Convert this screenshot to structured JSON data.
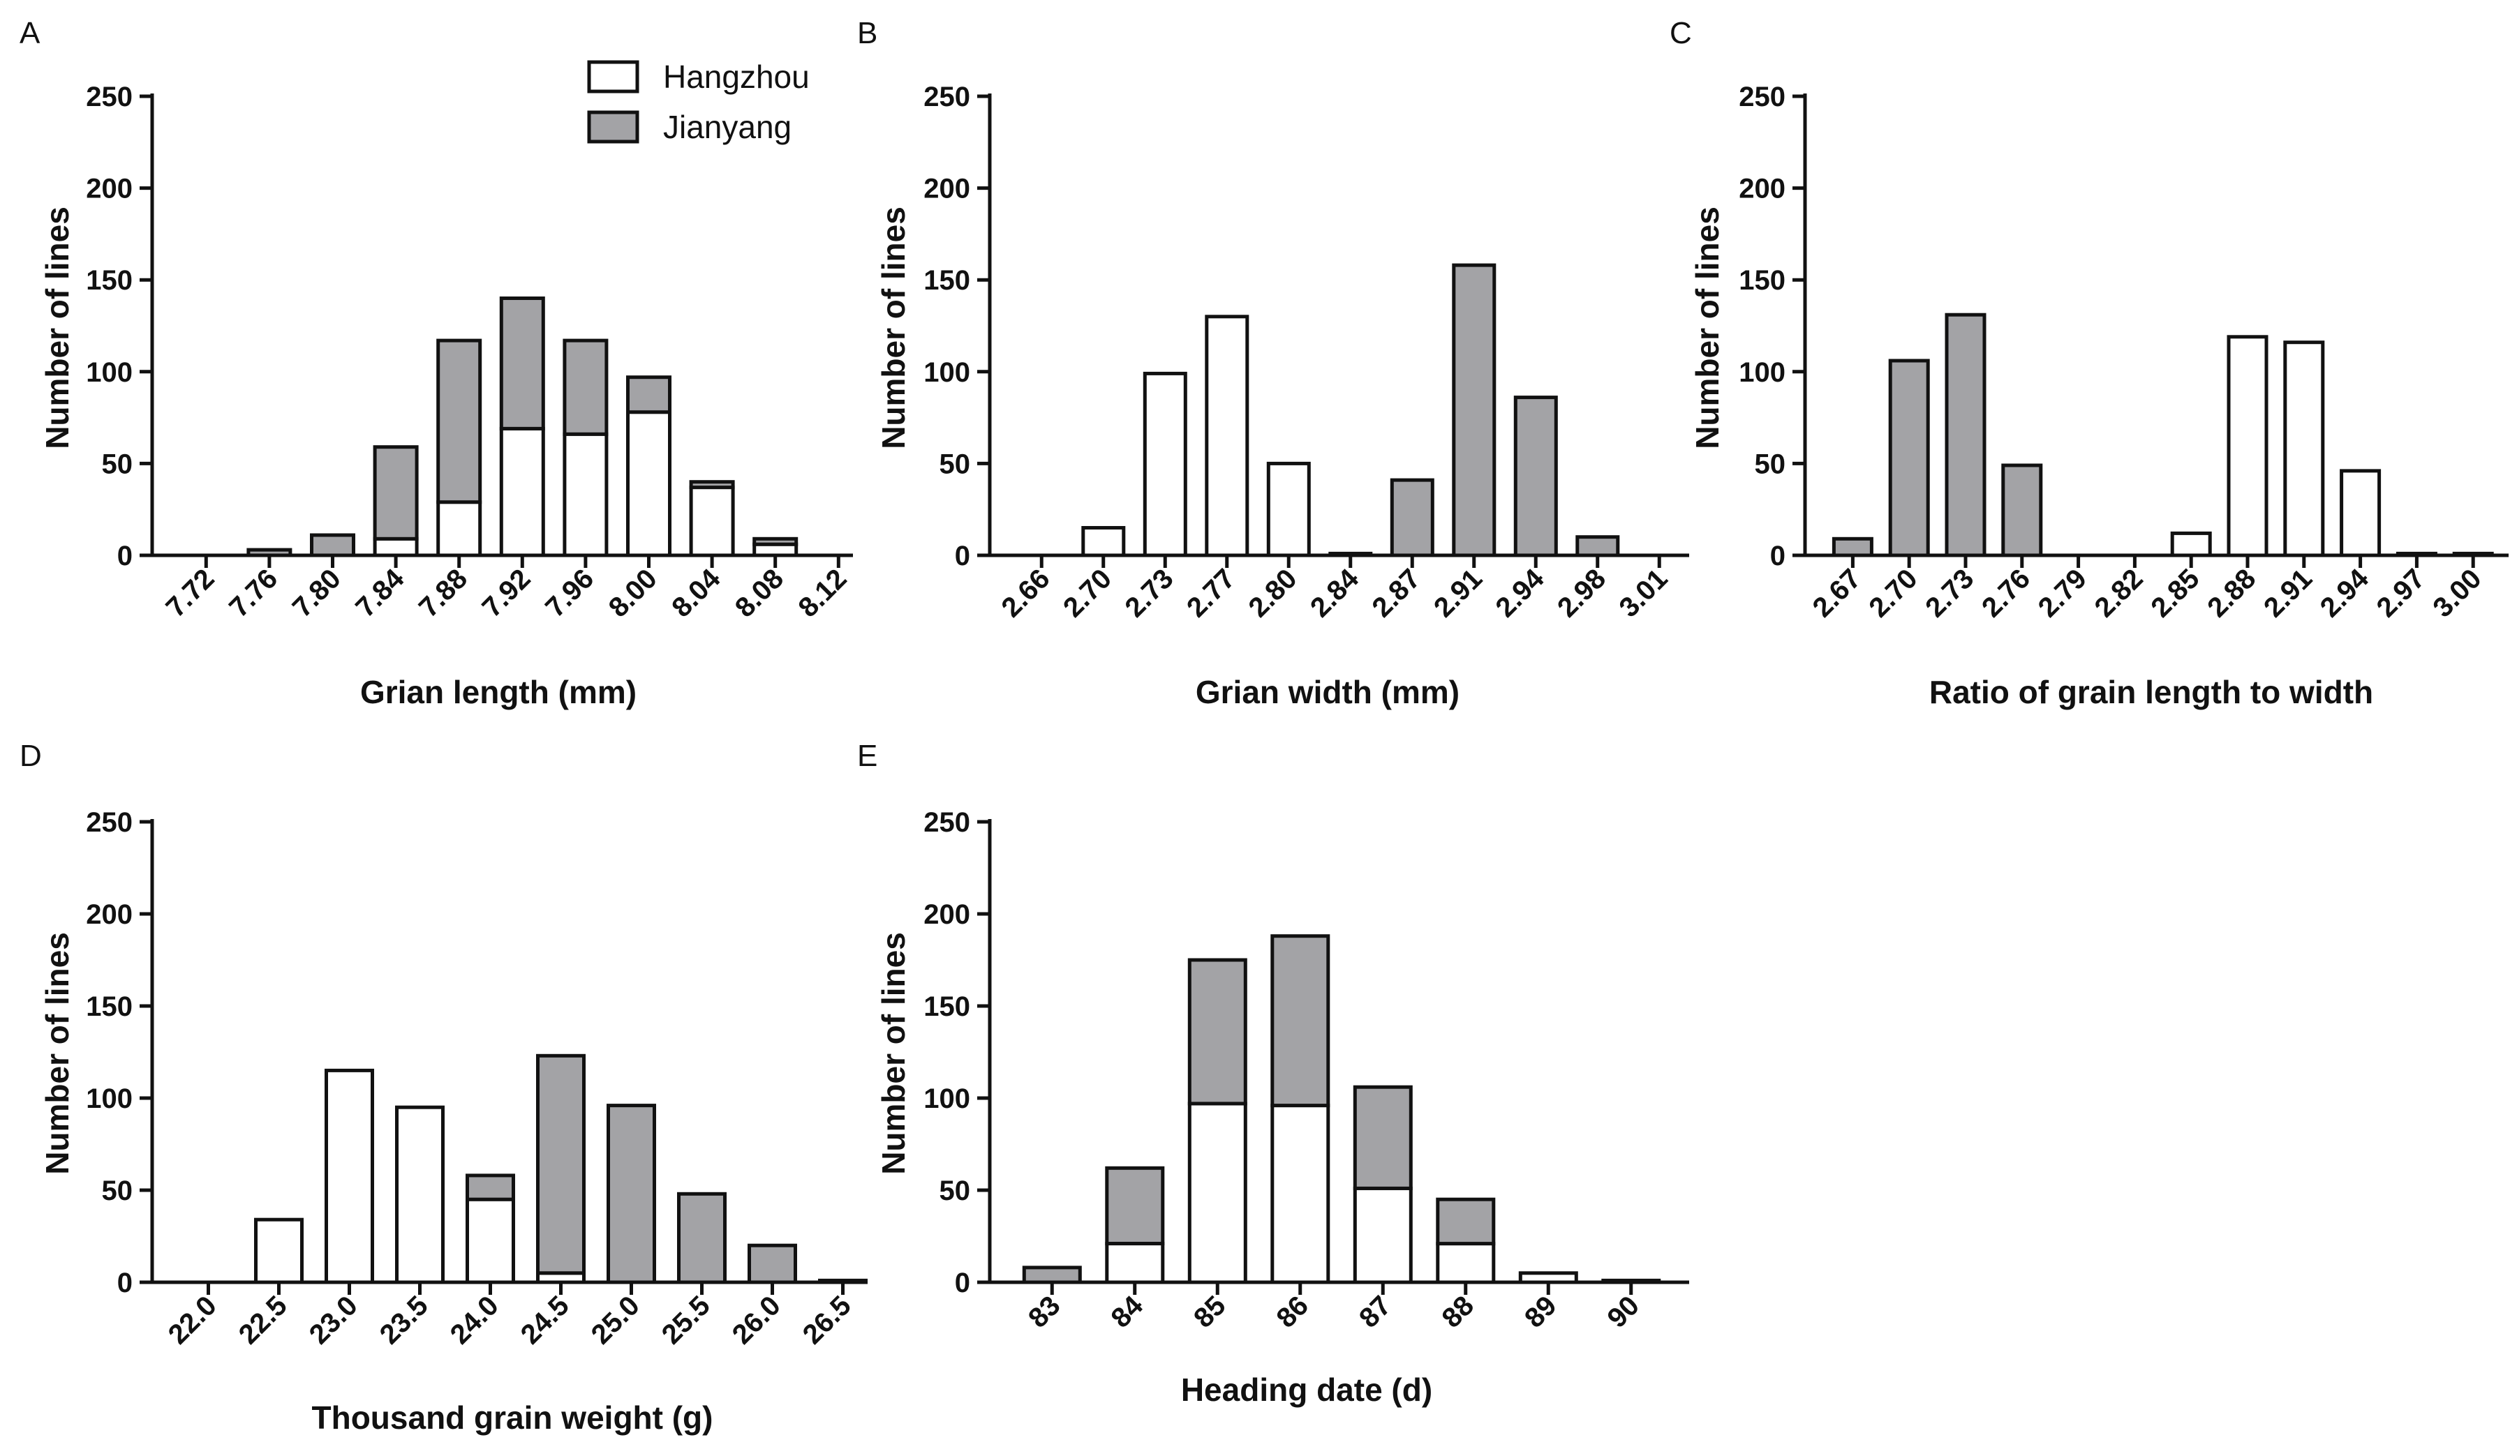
{
  "colors": {
    "hangzhou": "#ffffff",
    "jianyang": "#a3a3a6",
    "stroke": "#111111"
  },
  "legend": {
    "hangzhou_label": "Hangzhou",
    "jianyang_label": "Jianyang"
  },
  "chart_data": [
    {
      "panel": "A",
      "type": "bar",
      "stacked": true,
      "title": "",
      "xlabel": "Grian length (mm)",
      "ylabel": "Number of lines",
      "ylim": [
        0,
        250
      ],
      "yticks": [
        0,
        50,
        100,
        150,
        200,
        250
      ],
      "categories": [
        "7.72",
        "7.76",
        "7.80",
        "7.84",
        "7.88",
        "7.92",
        "7.96",
        "8.00",
        "8.04",
        "8.08",
        "8.12"
      ],
      "series": [
        {
          "name": "Hangzhou",
          "values": [
            0,
            0,
            0,
            9,
            29,
            69,
            66,
            78,
            37,
            6,
            0
          ]
        },
        {
          "name": "Jianyang",
          "values": [
            0,
            3,
            11,
            50,
            88,
            71,
            51,
            19,
            3,
            3,
            0
          ]
        }
      ]
    },
    {
      "panel": "B",
      "type": "bar",
      "stacked": true,
      "title": "",
      "xlabel": "Grian width (mm)",
      "ylabel": "Number of lines",
      "ylim": [
        0,
        250
      ],
      "yticks": [
        0,
        50,
        100,
        150,
        200,
        250
      ],
      "categories": [
        "2.66",
        "2.70",
        "2.73",
        "2.77",
        "2.80",
        "2.84",
        "2.87",
        "2.91",
        "2.94",
        "2.98",
        "3.01"
      ],
      "series": [
        {
          "name": "Hangzhou",
          "values": [
            0,
            15,
            99,
            130,
            50,
            0,
            0,
            0,
            0,
            0,
            0
          ]
        },
        {
          "name": "Jianyang",
          "values": [
            0,
            0,
            0,
            0,
            0,
            1,
            41,
            158,
            86,
            10,
            0
          ]
        }
      ]
    },
    {
      "panel": "C",
      "type": "bar",
      "stacked": true,
      "title": "",
      "xlabel": "Ratio of grain length to width",
      "ylabel": "Number of lines",
      "ylim": [
        0,
        250
      ],
      "yticks": [
        0,
        50,
        100,
        150,
        200,
        250
      ],
      "categories": [
        "2.67",
        "2.70",
        "2.73",
        "2.76",
        "2.79",
        "2.82",
        "2.85",
        "2.88",
        "2.91",
        "2.94",
        "2.97",
        "3.00"
      ],
      "series": [
        {
          "name": "Hangzhou",
          "values": [
            0,
            0,
            0,
            0,
            0,
            0,
            12,
            119,
            116,
            46,
            0,
            0
          ]
        },
        {
          "name": "Jianyang",
          "values": [
            9,
            106,
            131,
            49,
            0,
            0,
            0,
            0,
            0,
            0,
            1,
            1
          ]
        }
      ]
    },
    {
      "panel": "D",
      "type": "bar",
      "stacked": true,
      "title": "",
      "xlabel": "Thousand grain weight (g)",
      "ylabel": "Number of lines",
      "ylim": [
        0,
        250
      ],
      "yticks": [
        0,
        50,
        100,
        150,
        200,
        250
      ],
      "categories": [
        "22.0",
        "22.5",
        "23.0",
        "23.5",
        "24.0",
        "24.5",
        "25.0",
        "25.5",
        "26.0",
        "26.5"
      ],
      "series": [
        {
          "name": "Hangzhou",
          "values": [
            0,
            34,
            115,
            95,
            45,
            5,
            0,
            0,
            0,
            1
          ]
        },
        {
          "name": "Jianyang",
          "values": [
            0,
            0,
            0,
            0,
            13,
            118,
            96,
            48,
            20,
            0
          ]
        }
      ]
    },
    {
      "panel": "E",
      "type": "bar",
      "stacked": true,
      "title": "",
      "xlabel": "Heading date (d)",
      "ylabel": "Number of lines",
      "ylim": [
        0,
        250
      ],
      "yticks": [
        0,
        50,
        100,
        150,
        200,
        250
      ],
      "categories": [
        "83",
        "84",
        "85",
        "86",
        "87",
        "88",
        "89",
        "90"
      ],
      "series": [
        {
          "name": "Hangzhou",
          "values": [
            0,
            21,
            97,
            96,
            51,
            21,
            5,
            1
          ]
        },
        {
          "name": "Jianyang",
          "values": [
            8,
            41,
            78,
            92,
            55,
            24,
            0,
            0
          ]
        }
      ]
    }
  ]
}
